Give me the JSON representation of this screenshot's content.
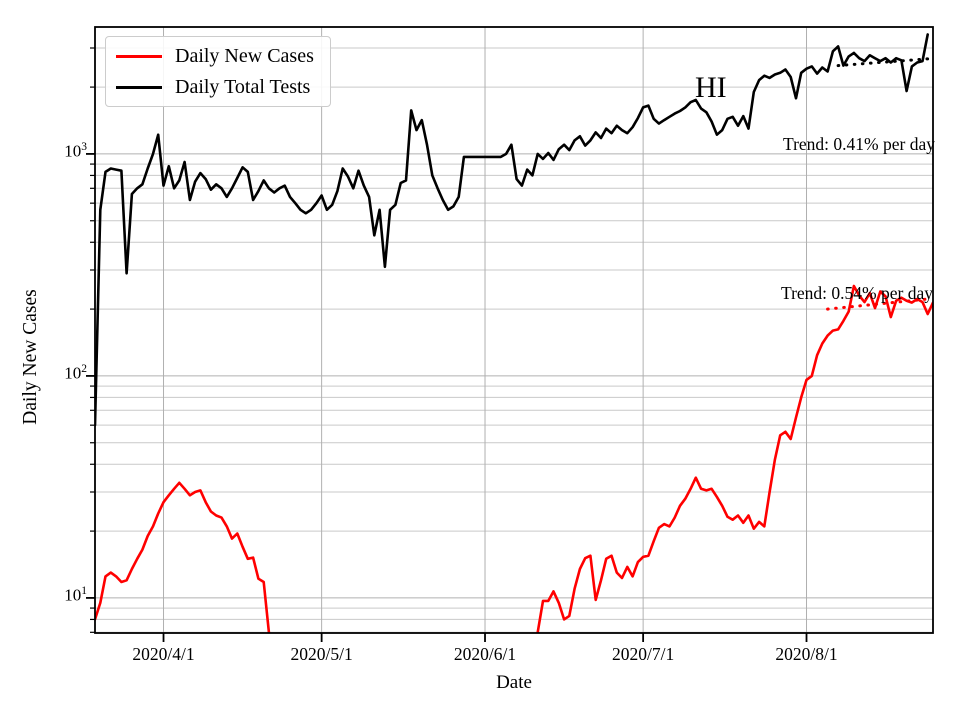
{
  "chart_data": {
    "type": "line",
    "title": "HI",
    "xlabel": "Date",
    "ylabel": "Daily New Cases",
    "yscale": "log",
    "grid": true,
    "ylim": [
      6.95,
      3730
    ],
    "x_range": [
      "2020/3/19",
      "2020/8/24"
    ],
    "x_tick_labels": [
      "2020/4/1",
      "2020/5/1",
      "2020/6/1",
      "2020/7/1",
      "2020/8/1"
    ],
    "x_tick_day_offsets": [
      13,
      43,
      74,
      104,
      135
    ],
    "y_tick_values": [
      10,
      100,
      1000
    ],
    "y_tick_labels": [
      {
        "base": "10",
        "exp": "1"
      },
      {
        "base": "10",
        "exp": "2"
      },
      {
        "base": "10",
        "exp": "3"
      }
    ],
    "legend": {
      "position": "upper left"
    },
    "series": [
      {
        "name": "Daily New Cases",
        "color": "#ff0000",
        "values": [
          8,
          9.5,
          12.5,
          13,
          12.5,
          11.8,
          12,
          13.5,
          15,
          16.5,
          19,
          21,
          24,
          27,
          29,
          31,
          33,
          31,
          29,
          30,
          30.5,
          27,
          24.5,
          23.5,
          23,
          21,
          18.5,
          19.5,
          17,
          15,
          15.2,
          12.2,
          11.8,
          7,
          null,
          null,
          null,
          null,
          null,
          null,
          null,
          null,
          null,
          null,
          null,
          null,
          null,
          null,
          null,
          null,
          null,
          null,
          null,
          null,
          null,
          null,
          null,
          null,
          null,
          null,
          null,
          null,
          null,
          null,
          null,
          null,
          null,
          null,
          null,
          null,
          null,
          null,
          null,
          null,
          null,
          null,
          null,
          null,
          null,
          null,
          null,
          null,
          null,
          null,
          7,
          9.7,
          9.7,
          10.7,
          9.5,
          8,
          8.3,
          11,
          13.5,
          15.1,
          15.5,
          9.8,
          12,
          15,
          15.5,
          13,
          12.3,
          13.8,
          12.5,
          14.5,
          15.3,
          15.5,
          18,
          20.7,
          21.5,
          21,
          23,
          26,
          28,
          31,
          34.8,
          31,
          30.5,
          31,
          28.5,
          26,
          23.2,
          22.5,
          23.5,
          21.8,
          23.5,
          20.5,
          22,
          21,
          30,
          42,
          54,
          56,
          52,
          65,
          80,
          96,
          100,
          124,
          140,
          152,
          160,
          162,
          177,
          195,
          254,
          230,
          215,
          236,
          202,
          240,
          228,
          184,
          218,
          225,
          218,
          214,
          222,
          215,
          190,
          214
        ]
      },
      {
        "name": "Daily Total Tests",
        "color": "#000000",
        "values": [
          60,
          560,
          830,
          860,
          850,
          840,
          290,
          660,
          700,
          730,
          860,
          1000,
          1220,
          720,
          880,
          700,
          760,
          920,
          620,
          750,
          820,
          770,
          690,
          730,
          700,
          640,
          700,
          780,
          870,
          830,
          620,
          680,
          760,
          700,
          670,
          700,
          720,
          640,
          600,
          560,
          540,
          560,
          600,
          650,
          560,
          590,
          680,
          860,
          790,
          700,
          840,
          720,
          640,
          430,
          560,
          310,
          560,
          590,
          740,
          760,
          1570,
          1280,
          1420,
          1100,
          800,
          700,
          620,
          560,
          580,
          640,
          970,
          970,
          970,
          970,
          970,
          970,
          970,
          970,
          1000,
          1100,
          770,
          720,
          850,
          800,
          1000,
          950,
          1010,
          940,
          1050,
          1100,
          1040,
          1150,
          1200,
          1090,
          1150,
          1250,
          1180,
          1300,
          1240,
          1340,
          1280,
          1240,
          1320,
          1450,
          1620,
          1650,
          1440,
          1370,
          1420,
          1470,
          1520,
          1560,
          1620,
          1710,
          1750,
          1600,
          1540,
          1400,
          1220,
          1280,
          1440,
          1470,
          1340,
          1480,
          1300,
          1900,
          2150,
          2250,
          2200,
          2280,
          2320,
          2400,
          2220,
          1780,
          2320,
          2420,
          2480,
          2300,
          2450,
          2350,
          2900,
          3050,
          2500,
          2750,
          2850,
          2700,
          2620,
          2780,
          2700,
          2620,
          2700,
          2580,
          2700,
          2640,
          1920,
          2480,
          2580,
          2620,
          3450
        ]
      }
    ],
    "trend_lines": [
      {
        "label": "Trend: 0.41% per day",
        "color": "#000000",
        "style": "dotted",
        "start_day_index": 141,
        "end_day_index": 158,
        "start_value": 2500,
        "end_value": 2680
      },
      {
        "label": "Trend: 0.54% per day",
        "color": "#ff0000",
        "style": "dotted",
        "start_day_index": 139,
        "end_day_index": 158,
        "start_value": 200,
        "end_value": 222
      }
    ]
  }
}
